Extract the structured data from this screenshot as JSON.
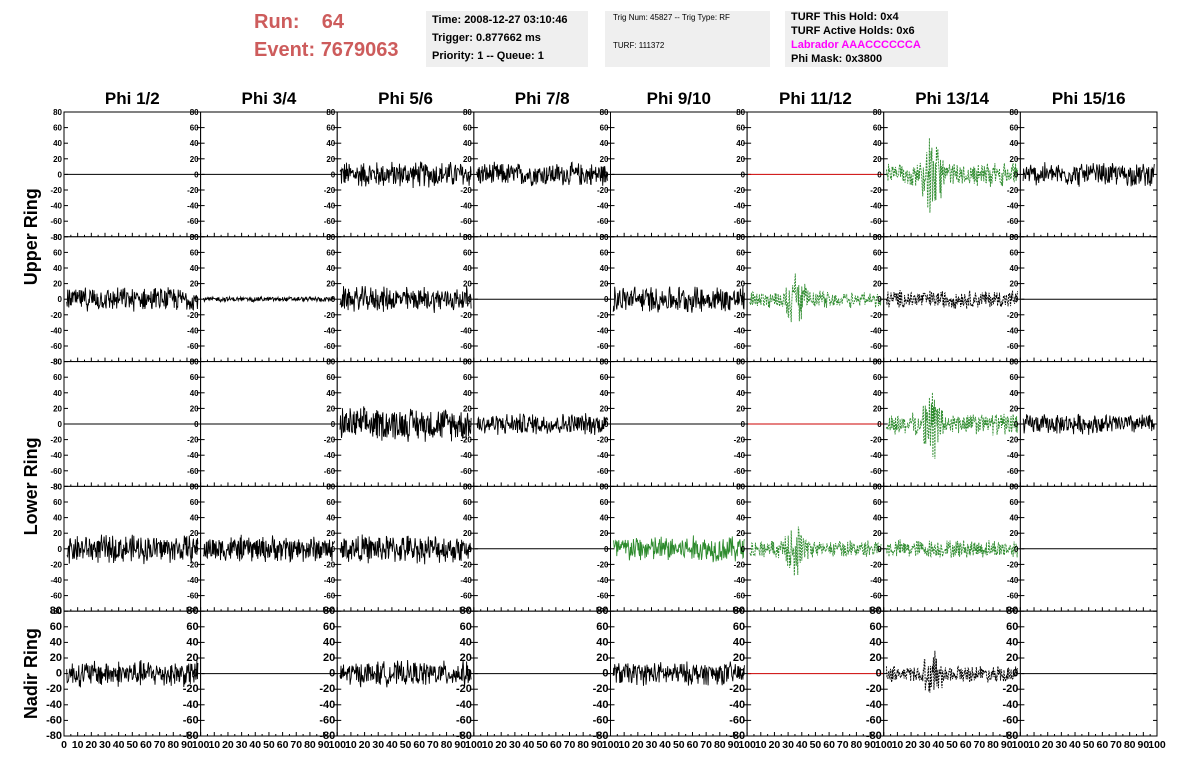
{
  "header": {
    "run_label": "Run:",
    "run_value": "64",
    "event_label": "Event:",
    "event_value": "7679063",
    "time": "Time: 2008-12-27 03:10:46",
    "trigger": "Trigger: 0.877662 ms",
    "priority": "Priority: 1 -- Queue: 1",
    "trig_num": "Trig Num: 45827 -- Trig Type: RF",
    "turf": "TURF: 111372",
    "turf_this_hold": "TURF This Hold: 0x4",
    "turf_active_holds": "TURF Active Holds: 0x6",
    "labrador": "Labrador AAACCCCCCA",
    "phi_mask": "Phi Mask: 0x3800"
  },
  "colors": {
    "run_text": "#cd5c5c",
    "labrador_text": "#ff00ff",
    "trace_normal": "#000000",
    "trace_triggered": "#2e8b2e",
    "trace_flat_masked": "#cc0000",
    "info_box_bg": "#efefef"
  },
  "chart_data": {
    "type": "line",
    "columns": [
      "Phi 1/2",
      "Phi 3/4",
      "Phi 5/6",
      "Phi 7/8",
      "Phi 9/10",
      "Phi 11/12",
      "Phi 13/14",
      "Phi 15/16"
    ],
    "ring_labels": [
      {
        "label": "Upper Ring",
        "rows": [
          0,
          1
        ]
      },
      {
        "label": "Lower Ring",
        "rows": [
          2,
          3
        ]
      },
      {
        "label": "Nadir Ring",
        "rows": [
          4
        ]
      }
    ],
    "xlim": [
      0,
      100
    ],
    "ylim": [
      -80,
      80
    ],
    "yticks": [
      -80,
      -60,
      -40,
      -20,
      0,
      20,
      40,
      60,
      80
    ],
    "xticks": [
      0,
      10,
      20,
      30,
      40,
      50,
      60,
      70,
      80,
      90,
      100
    ],
    "panels": [
      [
        {
          "state": "flat",
          "color": "black"
        },
        {
          "state": "flat",
          "color": "black"
        },
        {
          "state": "noise",
          "amp": 16,
          "color": "black"
        },
        {
          "state": "noise",
          "amp": 14,
          "color": "black"
        },
        {
          "state": "flat",
          "color": "black"
        },
        {
          "state": "flat",
          "color": "red"
        },
        {
          "state": "pulse",
          "amp": 14,
          "peak": 70,
          "color": "green",
          "dashed": true
        },
        {
          "state": "noise",
          "amp": 14,
          "color": "black"
        }
      ],
      [
        {
          "state": "noise",
          "amp": 14,
          "color": "black"
        },
        {
          "state": "noise",
          "amp": 3,
          "color": "black"
        },
        {
          "state": "noise",
          "amp": 15,
          "color": "black"
        },
        {
          "state": "flat",
          "color": "black"
        },
        {
          "state": "noise",
          "amp": 16,
          "color": "black"
        },
        {
          "state": "pulse",
          "amp": 10,
          "peak": 48,
          "color": "green",
          "dashed": true
        },
        {
          "state": "noise",
          "amp": 11,
          "color": "black",
          "dashed": true
        },
        {
          "state": "flat",
          "color": "black"
        }
      ],
      [
        {
          "state": "flat",
          "color": "black"
        },
        {
          "state": "flat",
          "color": "black"
        },
        {
          "state": "noise",
          "amp": 20,
          "color": "black"
        },
        {
          "state": "noise",
          "amp": 13,
          "color": "black"
        },
        {
          "state": "flat",
          "color": "black"
        },
        {
          "state": "flat",
          "color": "red"
        },
        {
          "state": "pulse",
          "amp": 13,
          "peak": 58,
          "color": "green",
          "dashed": true
        },
        {
          "state": "noise",
          "amp": 12,
          "color": "black"
        }
      ],
      [
        {
          "state": "noise",
          "amp": 17,
          "color": "black"
        },
        {
          "state": "noise",
          "amp": 16,
          "color": "black"
        },
        {
          "state": "noise",
          "amp": 17,
          "color": "black"
        },
        {
          "state": "flat",
          "color": "black"
        },
        {
          "state": "noise",
          "amp": 16,
          "color": "green"
        },
        {
          "state": "pulse",
          "amp": 10,
          "peak": 44,
          "color": "green",
          "dashed": true
        },
        {
          "state": "noise",
          "amp": 11,
          "color": "green",
          "dashed": true
        },
        {
          "state": "flat",
          "color": "black"
        }
      ],
      [
        {
          "state": "noise",
          "amp": 16,
          "color": "black"
        },
        {
          "state": "flat",
          "color": "black"
        },
        {
          "state": "noise",
          "amp": 15,
          "color": "black"
        },
        {
          "state": "flat",
          "color": "black"
        },
        {
          "state": "noise",
          "amp": 14,
          "color": "black"
        },
        {
          "state": "flat",
          "color": "red"
        },
        {
          "state": "pulse",
          "amp": 10,
          "peak": 38,
          "color": "black",
          "dashed": true
        },
        {
          "state": "flat",
          "color": "black"
        }
      ]
    ]
  }
}
